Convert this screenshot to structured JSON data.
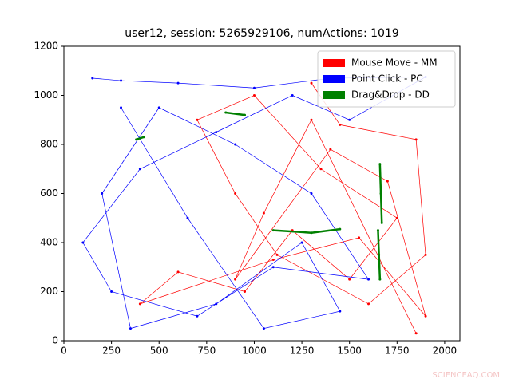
{
  "chart_data": {
    "type": "line",
    "title": "user12, session: 5265929106, numActions: 1019",
    "xlim": [
      0,
      2080
    ],
    "ylim": [
      0,
      1200
    ],
    "xticks": [
      0,
      250,
      500,
      750,
      1000,
      1250,
      1500,
      1750,
      2000
    ],
    "yticks": [
      0,
      200,
      400,
      600,
      800,
      1000,
      1200
    ],
    "legend": "upper right",
    "watermark": "SCIENCEAQ.COM",
    "series": [
      {
        "name": "Mouse Move - MM",
        "color": "#ff0000",
        "x": [
          1300,
          1450,
          1850,
          1900,
          1600,
          1120,
          900,
          700,
          1000,
          1350,
          1750,
          1500,
          1200,
          950,
          600,
          400,
          1100,
          1550,
          1900,
          1700,
          1400,
          900,
          1050,
          1300,
          1850
        ],
        "values": [
          1050,
          880,
          820,
          350,
          150,
          350,
          600,
          900,
          1000,
          700,
          500,
          250,
          450,
          200,
          280,
          150,
          330,
          420,
          100,
          650,
          780,
          250,
          520,
          900,
          30
        ]
      },
      {
        "name": "Point Click - PC",
        "color": "#0000ff",
        "x": [
          150,
          300,
          600,
          1000,
          1400,
          1900,
          1500,
          1200,
          800,
          400,
          100,
          250,
          700,
          1100,
          1600,
          1300,
          900,
          500,
          200,
          350,
          800,
          1250,
          1450,
          1050,
          650,
          300
        ],
        "values": [
          1070,
          1060,
          1050,
          1030,
          1070,
          1075,
          900,
          1000,
          850,
          700,
          400,
          200,
          100,
          300,
          250,
          600,
          800,
          950,
          600,
          50,
          150,
          400,
          120,
          50,
          500,
          950
        ]
      },
      {
        "name": "Drag&Drop - DD",
        "color": "#008000",
        "x": [
          1660,
          1665,
          1670,
          null,
          1650,
          1655,
          1660,
          null,
          1100,
          1300,
          1450,
          null,
          380,
          420,
          null,
          850,
          950
        ],
        "values": [
          720,
          600,
          480,
          null,
          450,
          350,
          250,
          null,
          450,
          440,
          455,
          null,
          820,
          830,
          null,
          930,
          920
        ]
      }
    ]
  }
}
